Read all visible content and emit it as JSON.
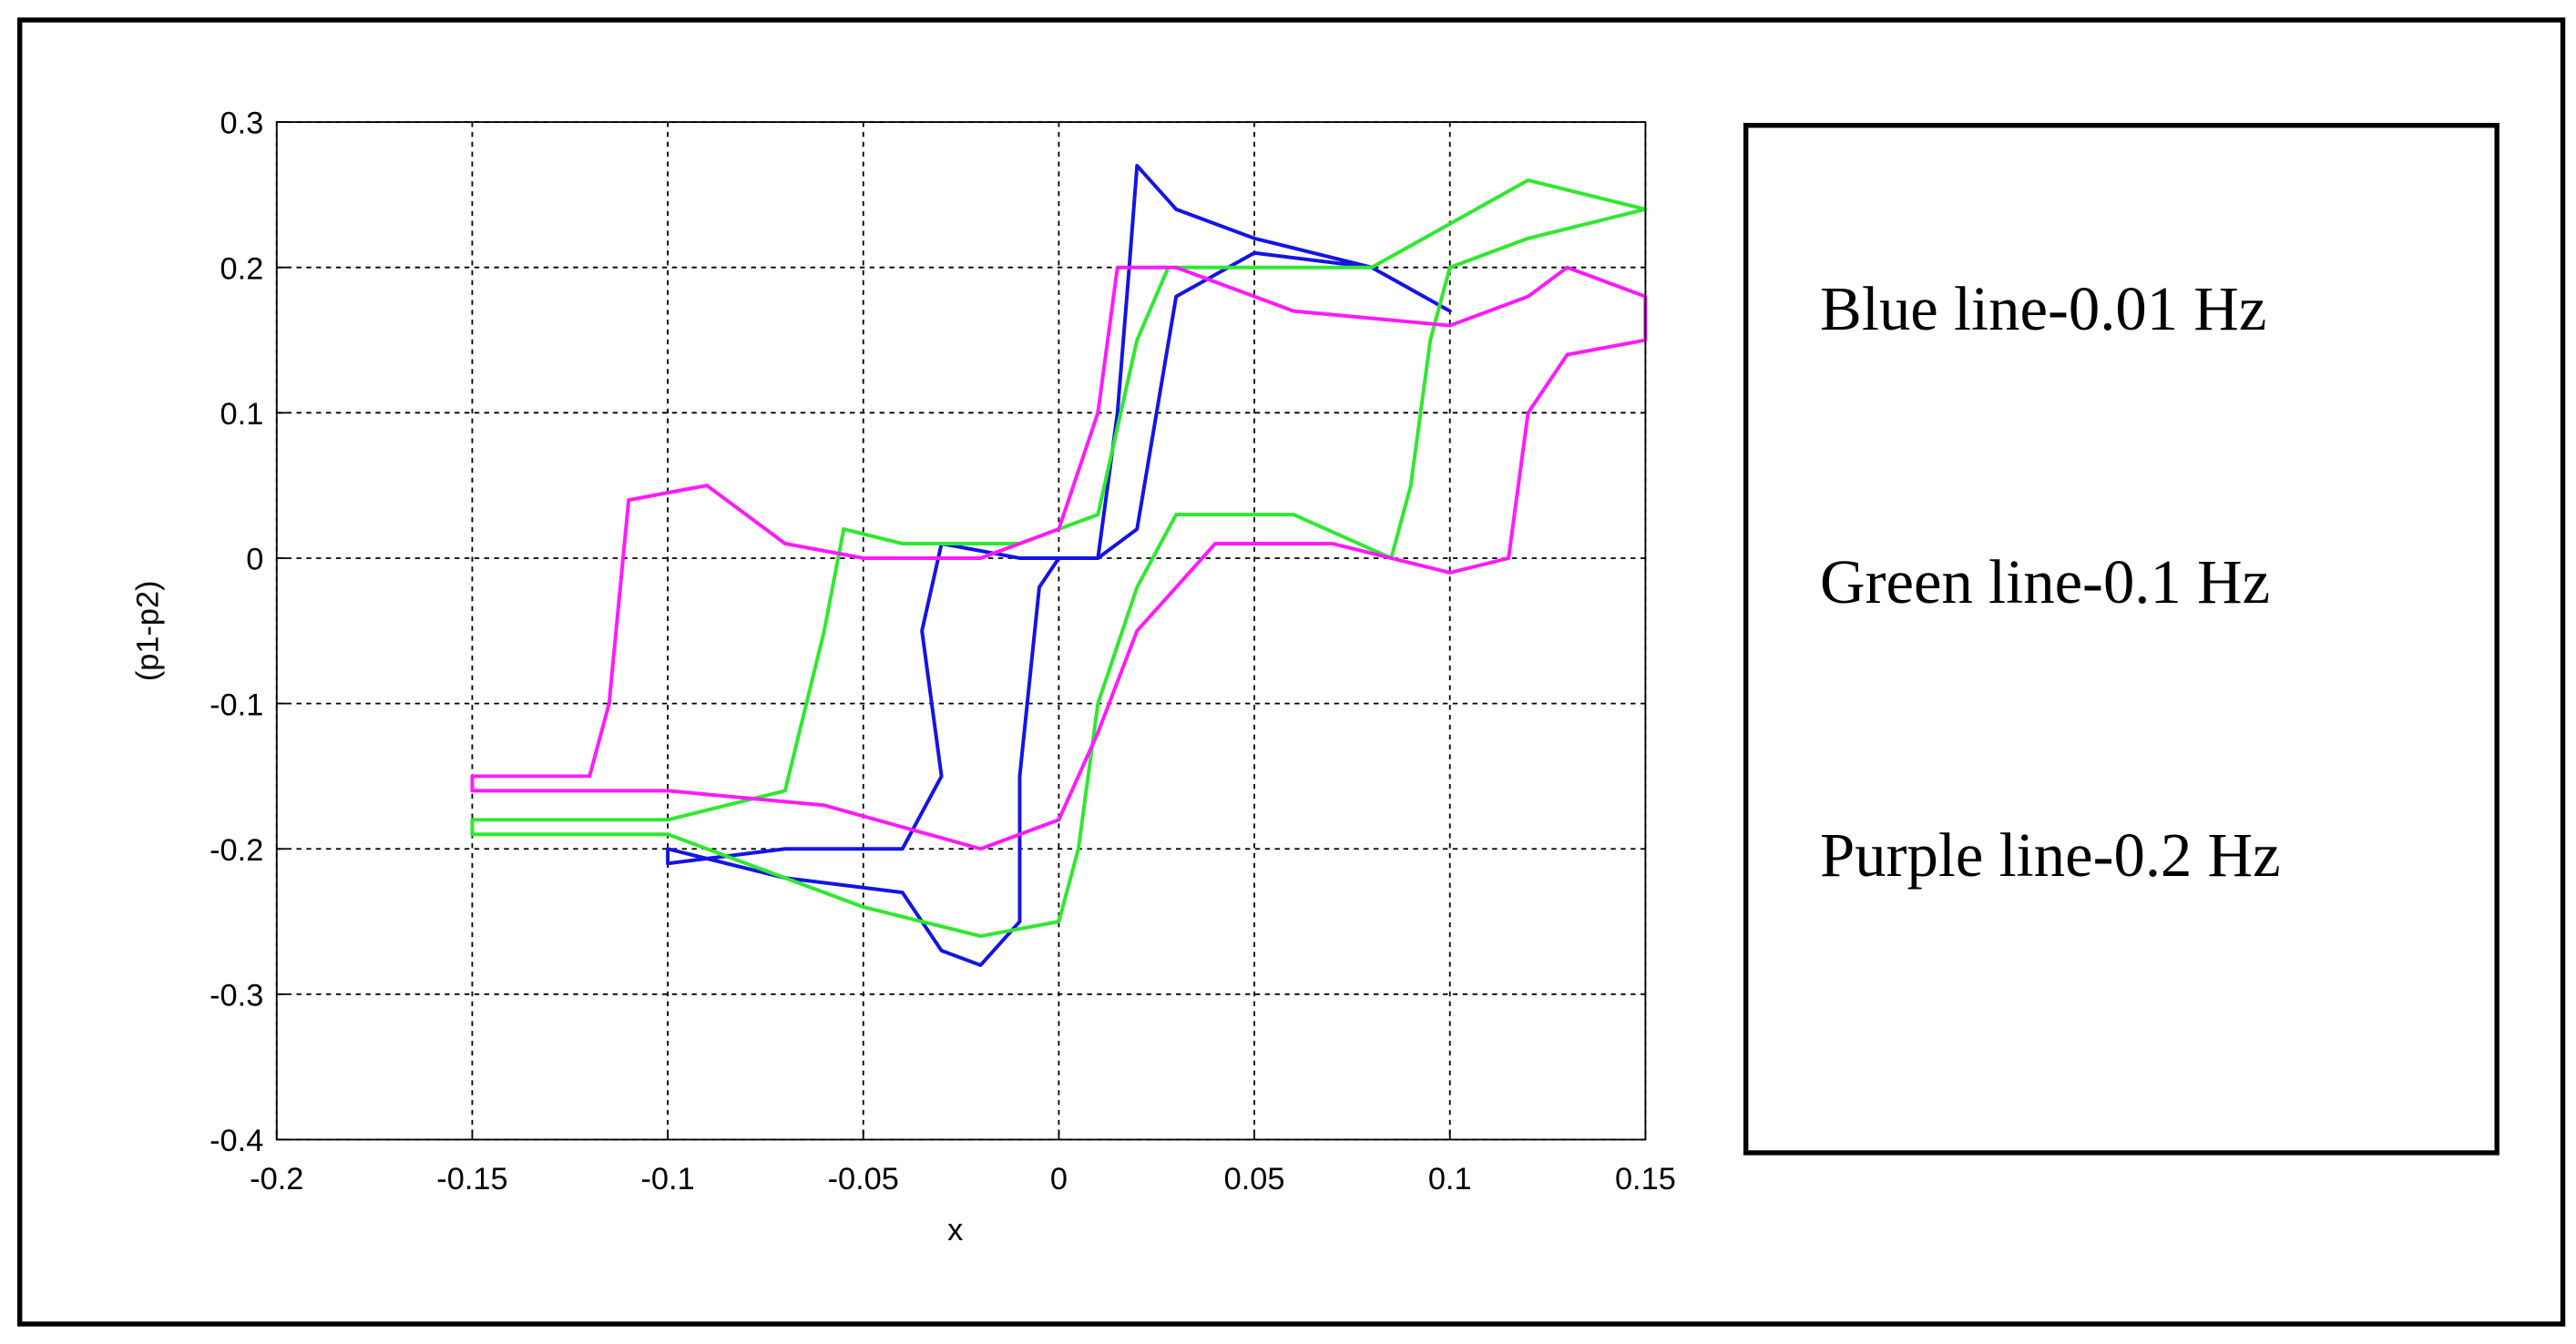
{
  "chart_data": {
    "type": "line",
    "xlabel": "x",
    "ylabel": "(p1-p2)",
    "xlim": [
      -0.2,
      0.15
    ],
    "xticks": [
      -0.2,
      -0.15,
      -0.1,
      -0.05,
      0,
      0.05,
      0.1,
      0.15
    ],
    "ylim": [
      -0.4,
      0.3
    ],
    "yticks": [
      -0.4,
      -0.3,
      -0.2,
      -0.1,
      0,
      0.1,
      0.2,
      0.3
    ],
    "grid": true,
    "legend": "right",
    "series": [
      {
        "name": "Blue line-0.01 Hz",
        "color": "#1414e6",
        "x": [
          -0.1,
          -0.07,
          -0.04,
          -0.03,
          -0.02,
          -0.01,
          -0.01,
          -0.005,
          0,
          0.01,
          0.015,
          0.018,
          0.02,
          0.03,
          0.05,
          0.08,
          0.1,
          0.08,
          0.05,
          0.03,
          0.025,
          0.02,
          0.01,
          -0.01,
          -0.03,
          -0.035,
          -0.03,
          -0.04,
          -0.07,
          -0.1
        ],
        "values": [
          -0.2,
          -0.22,
          -0.23,
          -0.27,
          -0.28,
          -0.25,
          -0.15,
          -0.02,
          0,
          0,
          0.1,
          0.2,
          0.27,
          0.24,
          0.22,
          0.2,
          0.17,
          0.2,
          0.21,
          0.18,
          0.1,
          0.02,
          0,
          0,
          0.01,
          -0.05,
          -0.15,
          -0.2,
          -0.2,
          -0.21
        ]
      },
      {
        "name": "Green line-0.1 Hz",
        "color": "#2fe82f",
        "x": [
          -0.15,
          -0.1,
          -0.07,
          -0.06,
          -0.055,
          -0.04,
          -0.01,
          0.01,
          0.02,
          0.028,
          0.05,
          0.08,
          0.1,
          0.12,
          0.15,
          0.12,
          0.1,
          0.095,
          0.09,
          0.085,
          0.06,
          0.03,
          0.02,
          0.01,
          0.005,
          0,
          -0.02,
          -0.05,
          -0.1,
          -0.15
        ],
        "values": [
          -0.18,
          -0.18,
          -0.16,
          -0.05,
          0.02,
          0.01,
          0.01,
          0.03,
          0.15,
          0.2,
          0.2,
          0.2,
          0.23,
          0.26,
          0.24,
          0.22,
          0.2,
          0.15,
          0.05,
          0,
          0.03,
          0.03,
          -0.02,
          -0.1,
          -0.2,
          -0.25,
          -0.26,
          -0.24,
          -0.19,
          -0.19
        ]
      },
      {
        "name": "Purple line-0.2 Hz",
        "color": "#ff1aff",
        "x": [
          -0.15,
          -0.12,
          -0.115,
          -0.11,
          -0.09,
          -0.07,
          -0.05,
          -0.02,
          0,
          0.01,
          0.015,
          0.03,
          0.06,
          0.1,
          0.12,
          0.13,
          0.15,
          0.15,
          0.13,
          0.12,
          0.115,
          0.1,
          0.07,
          0.04,
          0.03,
          0.02,
          0.01,
          0,
          -0.02,
          -0.06,
          -0.1,
          -0.15
        ],
        "values": [
          -0.15,
          -0.15,
          -0.1,
          0.04,
          0.05,
          0.01,
          0,
          0,
          0.02,
          0.1,
          0.2,
          0.2,
          0.17,
          0.16,
          0.18,
          0.2,
          0.18,
          0.15,
          0.14,
          0.1,
          0,
          -0.01,
          0.01,
          0.01,
          -0.02,
          -0.05,
          -0.12,
          -0.18,
          -0.2,
          -0.17,
          -0.16,
          -0.16
        ]
      }
    ]
  }
}
